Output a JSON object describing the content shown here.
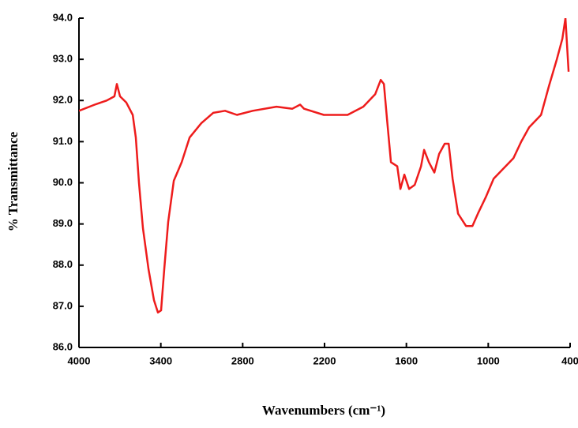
{
  "chart_data": {
    "type": "line",
    "xlabel": "Wavenumbers (cm⁻¹)",
    "ylabel": "% Transmittance",
    "color": "#ee1c1c",
    "xlim": [
      4000,
      400
    ],
    "ylim": [
      86,
      94
    ],
    "xticks": [
      4000,
      3400,
      2800,
      2200,
      1600,
      1000,
      400
    ],
    "yticks": [
      {
        "value": 86,
        "label": "86.0"
      },
      {
        "value": 87,
        "label": "87.0"
      },
      {
        "value": 88,
        "label": "88.0"
      },
      {
        "value": 89,
        "label": "89.0"
      },
      {
        "value": 90,
        "label": "90.0"
      },
      {
        "value": 91,
        "label": "91.0"
      },
      {
        "value": 92,
        "label": "92.0"
      },
      {
        "value": 93,
        "label": "93.0"
      },
      {
        "value": 94,
        "label": "94.0"
      }
    ],
    "x": [
      4000,
      3884,
      3797,
      3740,
      3722,
      3699,
      3653,
      3606,
      3583,
      3560,
      3531,
      3490,
      3450,
      3421,
      3398,
      3375,
      3346,
      3305,
      3247,
      3189,
      3103,
      3016,
      2929,
      2842,
      2726,
      2552,
      2436,
      2379,
      2350,
      2205,
      2031,
      1916,
      1829,
      1788,
      1765,
      1742,
      1713,
      1667,
      1644,
      1615,
      1580,
      1539,
      1493,
      1470,
      1435,
      1395,
      1360,
      1319,
      1290,
      1261,
      1221,
      1163,
      1116,
      1076,
      1018,
      960,
      873,
      815,
      758,
      700,
      613,
      555,
      497,
      457,
      434,
      411
    ],
    "values": [
      91.75,
      91.9,
      92.0,
      92.1,
      92.4,
      92.1,
      91.95,
      91.65,
      91.1,
      90.0,
      88.9,
      87.9,
      87.15,
      86.85,
      86.9,
      87.9,
      89.05,
      90.05,
      90.5,
      91.1,
      91.45,
      91.7,
      91.75,
      91.65,
      91.75,
      91.85,
      91.8,
      91.9,
      91.8,
      91.65,
      91.65,
      91.85,
      92.15,
      92.5,
      92.4,
      91.55,
      90.5,
      90.4,
      89.85,
      90.2,
      89.85,
      89.95,
      90.4,
      90.8,
      90.5,
      90.25,
      90.7,
      90.95,
      90.95,
      90.1,
      89.25,
      88.95,
      88.95,
      89.25,
      89.65,
      90.1,
      90.4,
      90.6,
      91.0,
      91.35,
      91.65,
      92.35,
      93.0,
      93.5,
      94.0,
      92.7
    ]
  }
}
